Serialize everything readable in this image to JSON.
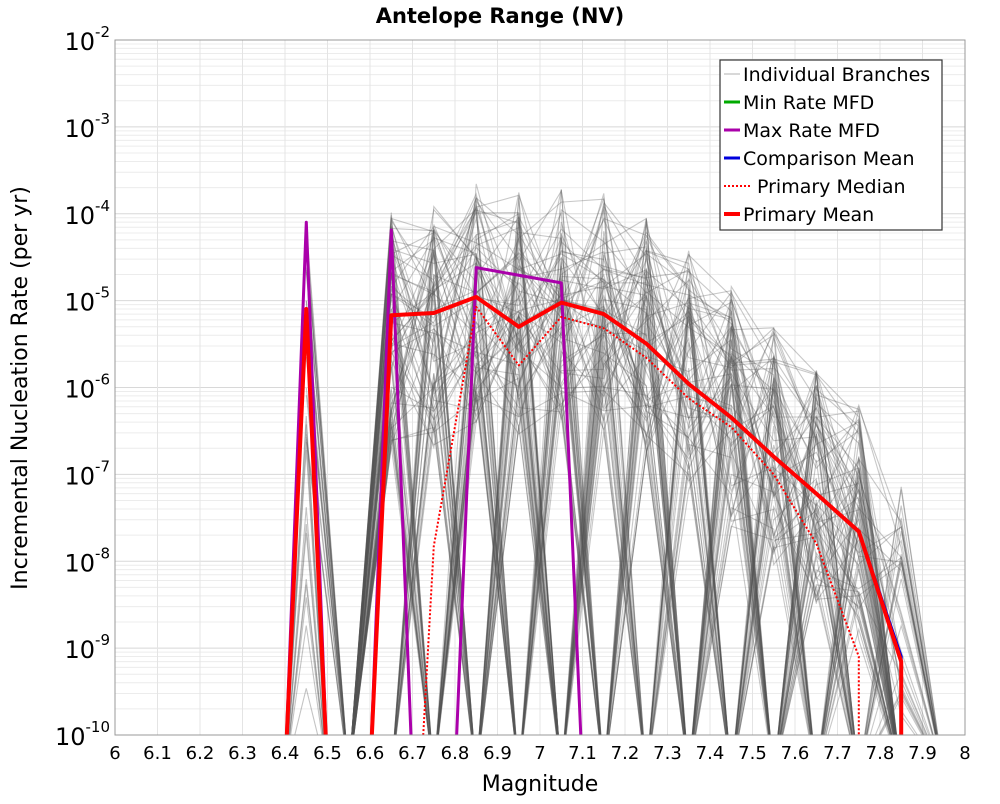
{
  "chart_data": {
    "type": "line",
    "title": "Antelope Range (NV)",
    "xlabel": "Magnitude",
    "ylabel": "Incremental Nucleation Rate (per yr)",
    "xlim": [
      6,
      8
    ],
    "ylim_log10": [
      -10,
      -2
    ],
    "y_scale": "log",
    "x_ticks": [
      "6",
      "6.1",
      "6.2",
      "6.3",
      "6.4",
      "6.5",
      "6.6",
      "6.7",
      "6.8",
      "6.9",
      "7",
      "7.1",
      "7.2",
      "7.3",
      "7.4",
      "7.5",
      "7.6",
      "7.7",
      "7.8",
      "7.9",
      "8"
    ],
    "y_ticks": [
      {
        "base": "10",
        "exp": "-10",
        "log10": -10
      },
      {
        "base": "10",
        "exp": "-9",
        "log10": -9
      },
      {
        "base": "10",
        "exp": "-8",
        "log10": -8
      },
      {
        "base": "10",
        "exp": "-7",
        "log10": -7
      },
      {
        "base": "10",
        "exp": "-6",
        "log10": -6
      },
      {
        "base": "10",
        "exp": "-5",
        "log10": -5
      },
      {
        "base": "10",
        "exp": "-4",
        "log10": -4
      },
      {
        "base": "10",
        "exp": "-3",
        "log10": -3
      },
      {
        "base": "10",
        "exp": "-2",
        "log10": -2
      }
    ],
    "grid": true,
    "legend_position": "top-right",
    "legend": [
      {
        "label": "Individual Branches",
        "color": "#b0b0b0",
        "style": "thin"
      },
      {
        "label": "Min Rate MFD",
        "color": "#00aa00",
        "style": "solid"
      },
      {
        "label": "Max Rate MFD",
        "color": "#aa00aa",
        "style": "solid"
      },
      {
        "label": "Comparison Mean",
        "color": "#0000dd",
        "style": "solid"
      },
      {
        "label": "Primary Median",
        "color": "#ff0000",
        "style": "dotted"
      },
      {
        "label": "Primary Mean",
        "color": "#ff0000",
        "style": "thick"
      }
    ],
    "series": [
      {
        "name": "Comparison Mean",
        "color": "#0000dd",
        "x": [
          6.45,
          6.65,
          6.75,
          6.85,
          6.95,
          7.05,
          7.15,
          7.25,
          7.35,
          7.45,
          7.55,
          7.65,
          7.75,
          7.85
        ],
        "y": [
          8e-06,
          6.8e-06,
          7.2e-06,
          1.1e-05,
          5e-06,
          9.5e-06,
          7e-06,
          3.2e-06,
          1.1e-06,
          4.5e-07,
          1.6e-07,
          6e-08,
          2.2e-08,
          8e-10
        ]
      },
      {
        "name": "Max Rate MFD",
        "color": "#aa00aa",
        "x": [
          6.45,
          6.65,
          6.85,
          7.05
        ],
        "y": [
          8e-05,
          6.5e-05,
          2.4e-05,
          1.6e-05
        ]
      },
      {
        "name": "Primary Median",
        "color": "#ff0000",
        "x": [
          6.75,
          6.85,
          6.95,
          7.05,
          7.15,
          7.25,
          7.35,
          7.45,
          7.55,
          7.65,
          7.75
        ],
        "y": [
          1.5e-08,
          8.5e-06,
          1.8e-06,
          6.5e-06,
          4.8e-06,
          2.2e-06,
          7.5e-07,
          3.5e-07,
          1e-07,
          1.6e-08,
          8e-10
        ]
      },
      {
        "name": "Primary Mean",
        "color": "#ff0000",
        "x": [
          6.45,
          6.65,
          6.75,
          6.85,
          6.95,
          7.05,
          7.15,
          7.25,
          7.35,
          7.45,
          7.55,
          7.65,
          7.75,
          7.85
        ],
        "y": [
          8e-06,
          6.8e-06,
          7.2e-06,
          1.1e-05,
          5e-06,
          9.5e-06,
          7e-06,
          3.2e-06,
          1.1e-06,
          4.5e-07,
          1.6e-07,
          6e-08,
          2.2e-08,
          7e-10
        ]
      }
    ]
  }
}
